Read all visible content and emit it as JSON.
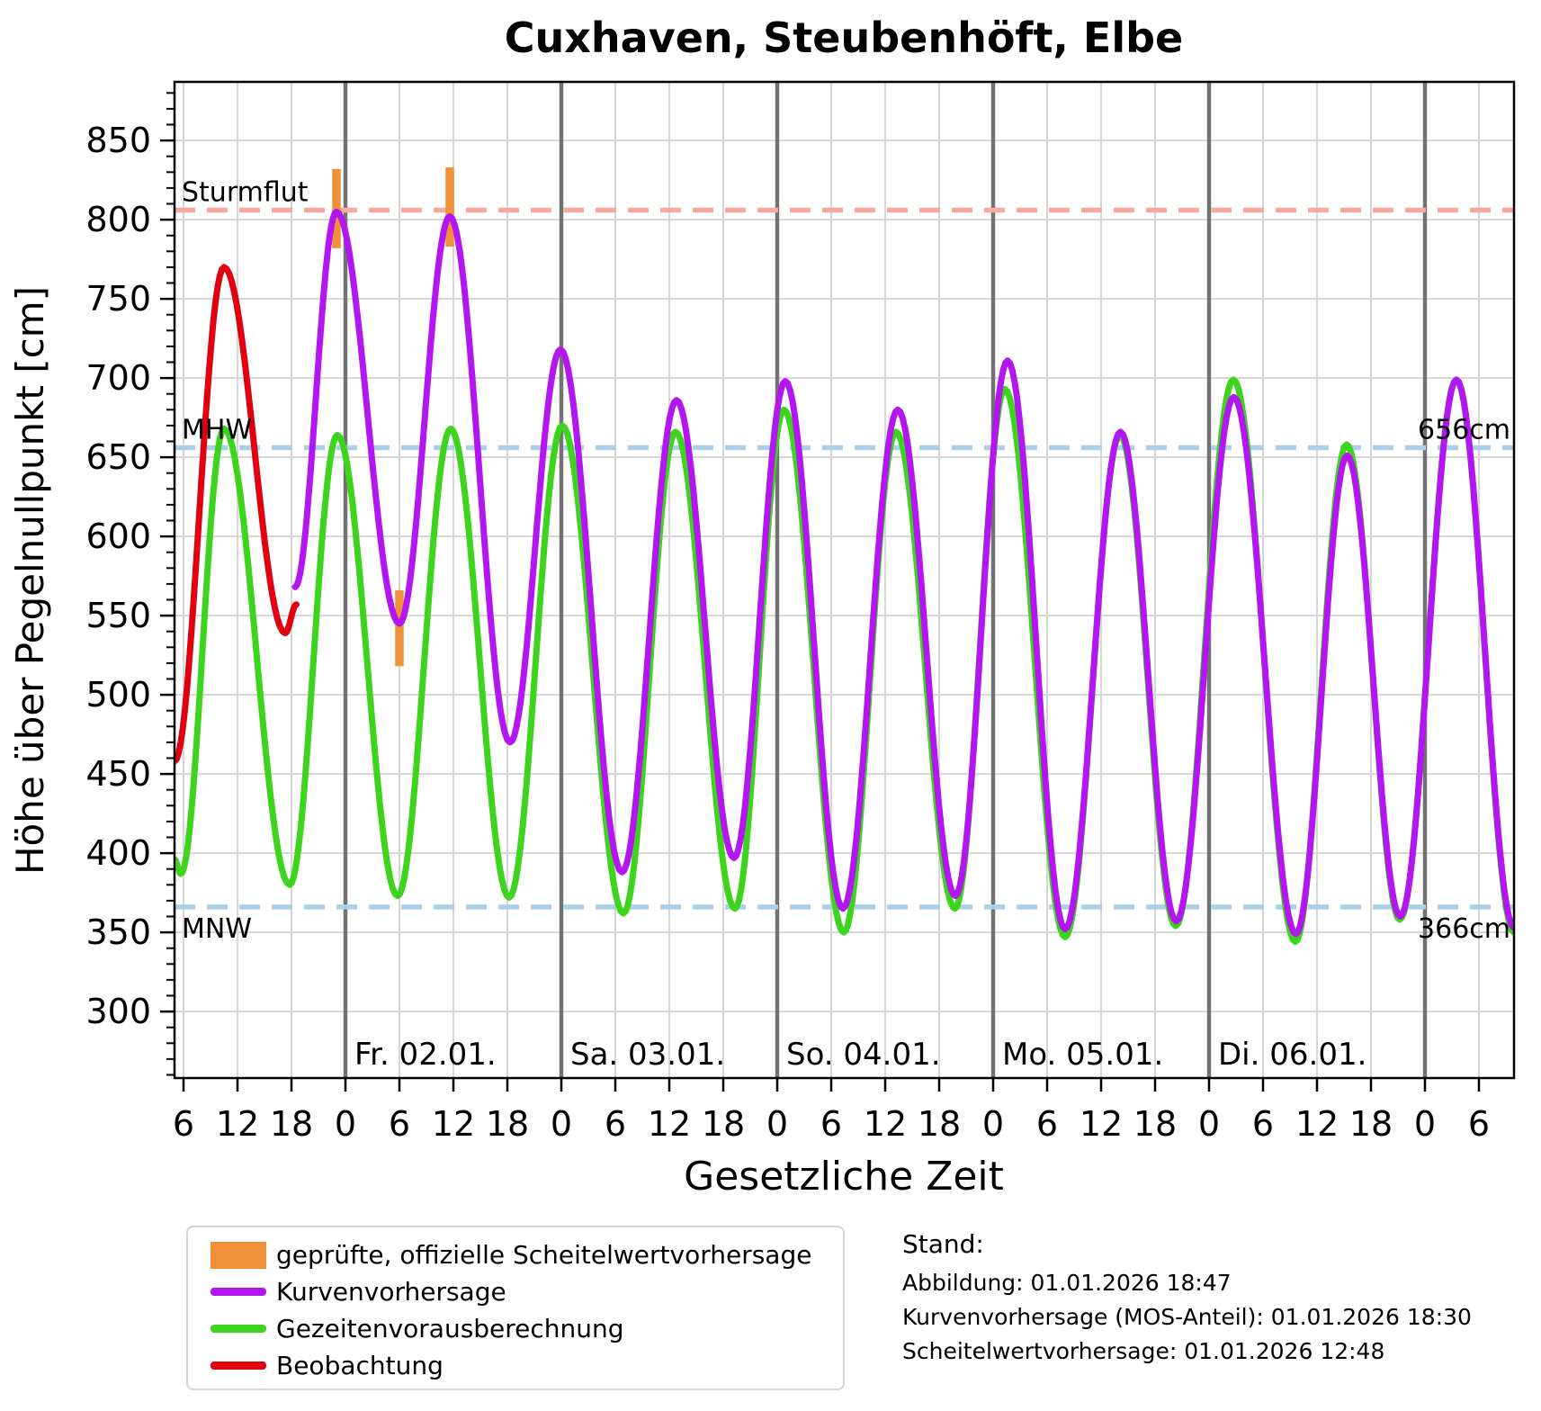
{
  "title": "Cuxhaven, Steubenhöft, Elbe",
  "chart_data": {
    "type": "line",
    "title": "Cuxhaven, Steubenhöft, Elbe",
    "xlabel": "Gesetzliche Zeit",
    "ylabel": "Höhe über Pegelnullpunkt [cm]",
    "x_axis_note": "hours since 01.01. 00:00, ticks labeled with hour of day",
    "xlim_hours": [
      5.0,
      153.9
    ],
    "ylim": [
      258,
      887
    ],
    "y_major_ticks": [
      300,
      350,
      400,
      450,
      500,
      550,
      600,
      650,
      700,
      750,
      800,
      850
    ],
    "y_minor_step": 10,
    "x_tick_step_hours": 6,
    "grid": true,
    "colors": {
      "grid": "#d6d6d6",
      "day_line": "#737373",
      "spine": "#000000",
      "sturmflut_line": "#f8a8a2",
      "mhw_mnw_line": "#a9cfea",
      "scheitelwert_bar": "#f0913a",
      "kurvenvorhersage": "#b316f0",
      "gezeitenvorausberechnung": "#3cd41c",
      "beobachtung": "#e0000f"
    },
    "day_lines": [
      {
        "t": 24,
        "label": "Fr. 02.01."
      },
      {
        "t": 48,
        "label": "Sa. 03.01."
      },
      {
        "t": 72,
        "label": "So. 04.01."
      },
      {
        "t": 96,
        "label": "Mo. 05.01."
      },
      {
        "t": 120,
        "label": "Di. 06.01."
      },
      {
        "t": 144,
        "label": ""
      }
    ],
    "reference_lines": [
      {
        "id": "sturmflut",
        "value_cm": 806,
        "color": "#f8a8a2",
        "left_label": "Sturmflut",
        "right_label": "",
        "label_side": "above"
      },
      {
        "id": "mhw",
        "value_cm": 656,
        "color": "#a9cfea",
        "left_label": "MHW",
        "right_label": "656cm",
        "label_side": "above"
      },
      {
        "id": "mnw",
        "value_cm": 366,
        "color": "#a9cfea",
        "left_label": "MNW",
        "right_label": "366cm",
        "label_side": "below"
      }
    ],
    "scheitelwert_bars": {
      "color": "#f0913a",
      "width_hours": 0.95,
      "bars": [
        {
          "t": 23.0,
          "lo_cm": 782,
          "hi_cm": 832
        },
        {
          "t": 30.0,
          "lo_cm": 518,
          "hi_cm": 566
        },
        {
          "t": 35.6,
          "lo_cm": 783,
          "hi_cm": 833
        }
      ]
    },
    "series": [
      {
        "id": "gezeiten",
        "name": "Gezeitenvorausberechnung",
        "color": "#3cd41c",
        "width": 7,
        "extremes_t_cm": [
          [
            5.0,
            396
          ],
          [
            5.7,
            387
          ],
          [
            10.5,
            668
          ],
          [
            17.8,
            380
          ],
          [
            23.1,
            664
          ],
          [
            29.8,
            373
          ],
          [
            35.7,
            668
          ],
          [
            42.2,
            372
          ],
          [
            48.1,
            670
          ],
          [
            54.9,
            362
          ],
          [
            60.7,
            666
          ],
          [
            67.3,
            365
          ],
          [
            72.75,
            680
          ],
          [
            79.4,
            350
          ],
          [
            85.2,
            666
          ],
          [
            91.75,
            365
          ],
          [
            97.3,
            693
          ],
          [
            104.0,
            347
          ],
          [
            110.1,
            664
          ],
          [
            116.3,
            354
          ],
          [
            122.7,
            699
          ],
          [
            129.6,
            344
          ],
          [
            135.3,
            658
          ],
          [
            141.2,
            358
          ],
          [
            147.5,
            699
          ],
          [
            153.9,
            350
          ]
        ]
      },
      {
        "id": "kurve",
        "name": "Kurvenvorhersage",
        "color": "#b316f0",
        "width": 7,
        "extremes_t_cm": [
          [
            18.4,
            568
          ],
          [
            23.0,
            805
          ],
          [
            30.0,
            545
          ],
          [
            35.6,
            802
          ],
          [
            42.3,
            470
          ],
          [
            47.9,
            718
          ],
          [
            54.75,
            388
          ],
          [
            60.8,
            686
          ],
          [
            67.2,
            397
          ],
          [
            72.9,
            698
          ],
          [
            79.3,
            365
          ],
          [
            85.4,
            680
          ],
          [
            91.8,
            373
          ],
          [
            97.6,
            711
          ],
          [
            104.0,
            352
          ],
          [
            110.15,
            666
          ],
          [
            116.35,
            357
          ],
          [
            122.75,
            688
          ],
          [
            129.65,
            349
          ],
          [
            135.35,
            651
          ],
          [
            141.25,
            360
          ],
          [
            147.5,
            699
          ],
          [
            153.9,
            353
          ]
        ]
      },
      {
        "id": "beobachtung",
        "name": "Beobachtung",
        "color": "#e0000f",
        "width": 7,
        "extremes_t_cm": [
          [
            5.0,
            458
          ],
          [
            10.5,
            770
          ],
          [
            17.3,
            539
          ],
          [
            18.55,
            557
          ]
        ]
      }
    ]
  },
  "legend": {
    "items": [
      {
        "type": "patch",
        "color": "#f0913a",
        "label": "geprüfte, offizielle Scheitelwertvorhersage"
      },
      {
        "type": "line",
        "color": "#b316f0",
        "label": "Kurvenvorhersage"
      },
      {
        "type": "line",
        "color": "#3cd41c",
        "label": "Gezeitenvorausberechnung"
      },
      {
        "type": "line",
        "color": "#e0000f",
        "label": "Beobachtung"
      }
    ]
  },
  "stand": {
    "heading": "Stand:",
    "lines": [
      "Abbildung: 01.01.2026 18:47",
      "Kurvenvorhersage (MOS-Anteil): 01.01.2026 18:30",
      "Scheitelwertvorhersage: 01.01.2026 12:48"
    ]
  }
}
